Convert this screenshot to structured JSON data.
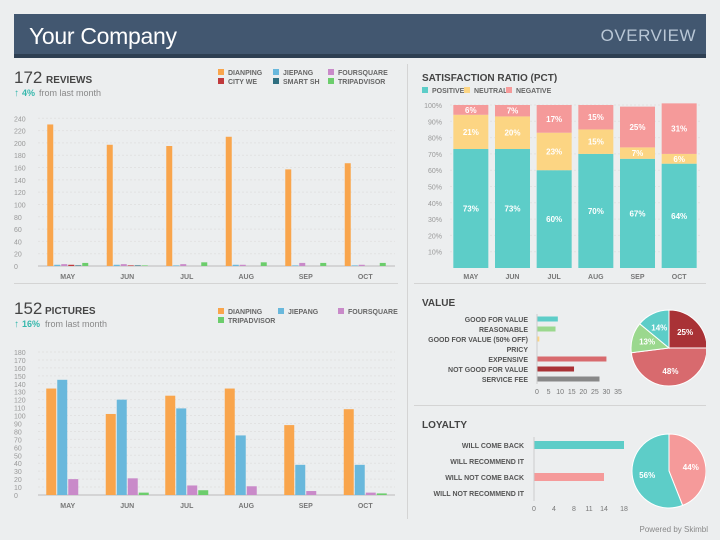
{
  "header": {
    "title": "Your Company",
    "tab": "OVERVIEW"
  },
  "reviews": {
    "count": "172",
    "label": "REVIEWS",
    "delta": "4%",
    "delta_text": "from last month",
    "legend": [
      {
        "name": "DIANPING",
        "color": "#f9a54c"
      },
      {
        "name": "JIEPANG",
        "color": "#69b8dc"
      },
      {
        "name": "FOURSQUARE",
        "color": "#c98ac9"
      },
      {
        "name": "CITY WE",
        "color": "#c0393c"
      },
      {
        "name": "SMART SH",
        "color": "#2f6f80"
      },
      {
        "name": "TRIPADVISOR",
        "color": "#6ccd6c"
      }
    ]
  },
  "pictures": {
    "count": "152",
    "label": "PICTURES",
    "delta": "16%",
    "delta_text": "from last month",
    "legend": [
      {
        "name": "DIANPING",
        "color": "#f9a54c"
      },
      {
        "name": "JIEPANG",
        "color": "#69b8dc"
      },
      {
        "name": "FOURSQUARE",
        "color": "#c98ac9"
      },
      {
        "name": "TRIPADVISOR",
        "color": "#6ccd6c"
      }
    ]
  },
  "satisfaction": {
    "title": "SATISFACTION RATIO (PCT)",
    "legend": [
      {
        "name": "POSITIVE",
        "color": "#5dcdc8"
      },
      {
        "name": "NEUTRAL",
        "color": "#fcd583"
      },
      {
        "name": "NEGATIVE",
        "color": "#f59a9a"
      }
    ]
  },
  "value": {
    "title": "VALUE"
  },
  "loyalty": {
    "title": "LOYALTY"
  },
  "footer": "Powered by Skimbl",
  "chart_data": [
    {
      "id": "reviews",
      "type": "bar",
      "categories": [
        "MAY",
        "JUN",
        "JUL",
        "AUG",
        "SEP",
        "OCT"
      ],
      "yticks": [
        "0",
        "20",
        "40",
        "60",
        "80",
        "100",
        "120",
        "140",
        "160",
        "180",
        "200",
        "220",
        "240"
      ],
      "ylim": [
        0,
        260
      ],
      "series": [
        {
          "name": "DIANPING",
          "color": "#f9a54c",
          "values": [
            230,
            197,
            195,
            210,
            157,
            167
          ]
        },
        {
          "name": "JIEPANG",
          "color": "#69b8dc",
          "values": [
            2,
            2,
            1,
            2,
            1,
            1
          ]
        },
        {
          "name": "FOURSQUARE",
          "color": "#c98ac9",
          "values": [
            3,
            3,
            3,
            2,
            5,
            2
          ]
        },
        {
          "name": "CITY WE",
          "color": "#c0393c",
          "values": [
            2,
            1,
            0,
            0,
            0,
            0
          ]
        },
        {
          "name": "SMART SH",
          "color": "#2f6f80",
          "values": [
            1,
            1,
            0,
            0,
            0,
            0
          ]
        },
        {
          "name": "TRIPADVISOR",
          "color": "#6ccd6c",
          "values": [
            5,
            1,
            6,
            6,
            5,
            5
          ]
        }
      ]
    },
    {
      "id": "pictures",
      "type": "bar",
      "categories": [
        "MAY",
        "JUN",
        "JUL",
        "AUG",
        "SEP",
        "OCT"
      ],
      "yticks": [
        "0",
        "10",
        "20",
        "30",
        "40",
        "50",
        "60",
        "70",
        "80",
        "90",
        "100",
        "110",
        "120",
        "130",
        "140",
        "150",
        "160",
        "170",
        "180"
      ],
      "ylim": [
        0,
        180
      ],
      "series": [
        {
          "name": "DIANPING",
          "color": "#f9a54c",
          "values": [
            134,
            102,
            125,
            134,
            88,
            108
          ]
        },
        {
          "name": "JIEPANG",
          "color": "#69b8dc",
          "values": [
            145,
            120,
            109,
            75,
            38,
            38
          ]
        },
        {
          "name": "FOURSQUARE",
          "color": "#c98ac9",
          "values": [
            20,
            21,
            12,
            11,
            5,
            3
          ]
        },
        {
          "name": "TRIPADVISOR",
          "color": "#6ccd6c",
          "values": [
            0,
            3,
            6,
            0,
            0,
            2
          ]
        }
      ]
    },
    {
      "id": "satisfaction",
      "type": "bar",
      "stacked": true,
      "categories": [
        "MAY",
        "JUN",
        "JUL",
        "AUG",
        "SEP",
        "OCT"
      ],
      "yticks": [
        "10%",
        "20%",
        "30%",
        "40%",
        "50%",
        "60%",
        "70%",
        "80%",
        "90%",
        "100%"
      ],
      "series": [
        {
          "name": "POSITIVE",
          "color": "#5dcdc8",
          "values": [
            73,
            73,
            60,
            70,
            67,
            64
          ],
          "labels": [
            "73%",
            "73%",
            "60%",
            "70%",
            "67%",
            "64%"
          ]
        },
        {
          "name": "NEUTRAL",
          "color": "#fcd583",
          "values": [
            21,
            20,
            23,
            15,
            7,
            6
          ],
          "labels": [
            "21%",
            "20%",
            "23%",
            "15%",
            "7%",
            "6%"
          ]
        },
        {
          "name": "NEGATIVE",
          "color": "#f59a9a",
          "values": [
            6,
            7,
            17,
            15,
            25,
            31
          ],
          "labels": [
            "6%",
            "7%",
            "17%",
            "15%",
            "25%",
            "31%"
          ]
        }
      ]
    },
    {
      "id": "value-bars",
      "type": "bar",
      "orientation": "horizontal",
      "categories": [
        "GOOD FOR VALUE",
        "REASONABLE",
        "GOOD FOR VALUE (50% OFF)",
        "PRICY",
        "EXPENSIVE",
        "NOT GOOD FOR VALUE",
        "SERVICE FEE"
      ],
      "values": [
        9,
        8,
        1,
        0,
        30,
        16,
        27
      ],
      "colors": [
        "#5dcdc8",
        "#9bd88e",
        "#fcd583",
        "#f59a9a",
        "#d86a6e",
        "#a93236",
        "#888888"
      ],
      "xticks": [
        "0",
        "5",
        "10",
        "15",
        "20",
        "25",
        "30",
        "35"
      ],
      "xlim": [
        0,
        35
      ]
    },
    {
      "id": "value-pie",
      "type": "pie",
      "slices": [
        {
          "label": "25%",
          "value": 25,
          "color": "#a93236"
        },
        {
          "label": "48%",
          "value": 48,
          "color": "#d86a6e"
        },
        {
          "label": "13%",
          "value": 13,
          "color": "#9bd88e"
        },
        {
          "label": "14%",
          "value": 14,
          "color": "#5dcdc8"
        }
      ]
    },
    {
      "id": "loyalty-bars",
      "type": "bar",
      "orientation": "horizontal",
      "categories": [
        "WILL COME BACK",
        "WILL RECOMMEND IT",
        "WILL NOT COME BACK",
        "WILL NOT RECOMMEND IT"
      ],
      "values": [
        18,
        0,
        14,
        0
      ],
      "colors": [
        "#5dcdc8",
        "#9bd88e",
        "#f59a9a",
        "#a93236"
      ],
      "xticks": [
        "0",
        "4",
        "8",
        "11",
        "14",
        "18"
      ],
      "xlim": [
        0,
        18
      ]
    },
    {
      "id": "loyalty-pie",
      "type": "pie",
      "slices": [
        {
          "label": "44%",
          "value": 44,
          "color": "#f59a9a"
        },
        {
          "label": "56%",
          "value": 56,
          "color": "#5dcdc8"
        }
      ]
    }
  ]
}
